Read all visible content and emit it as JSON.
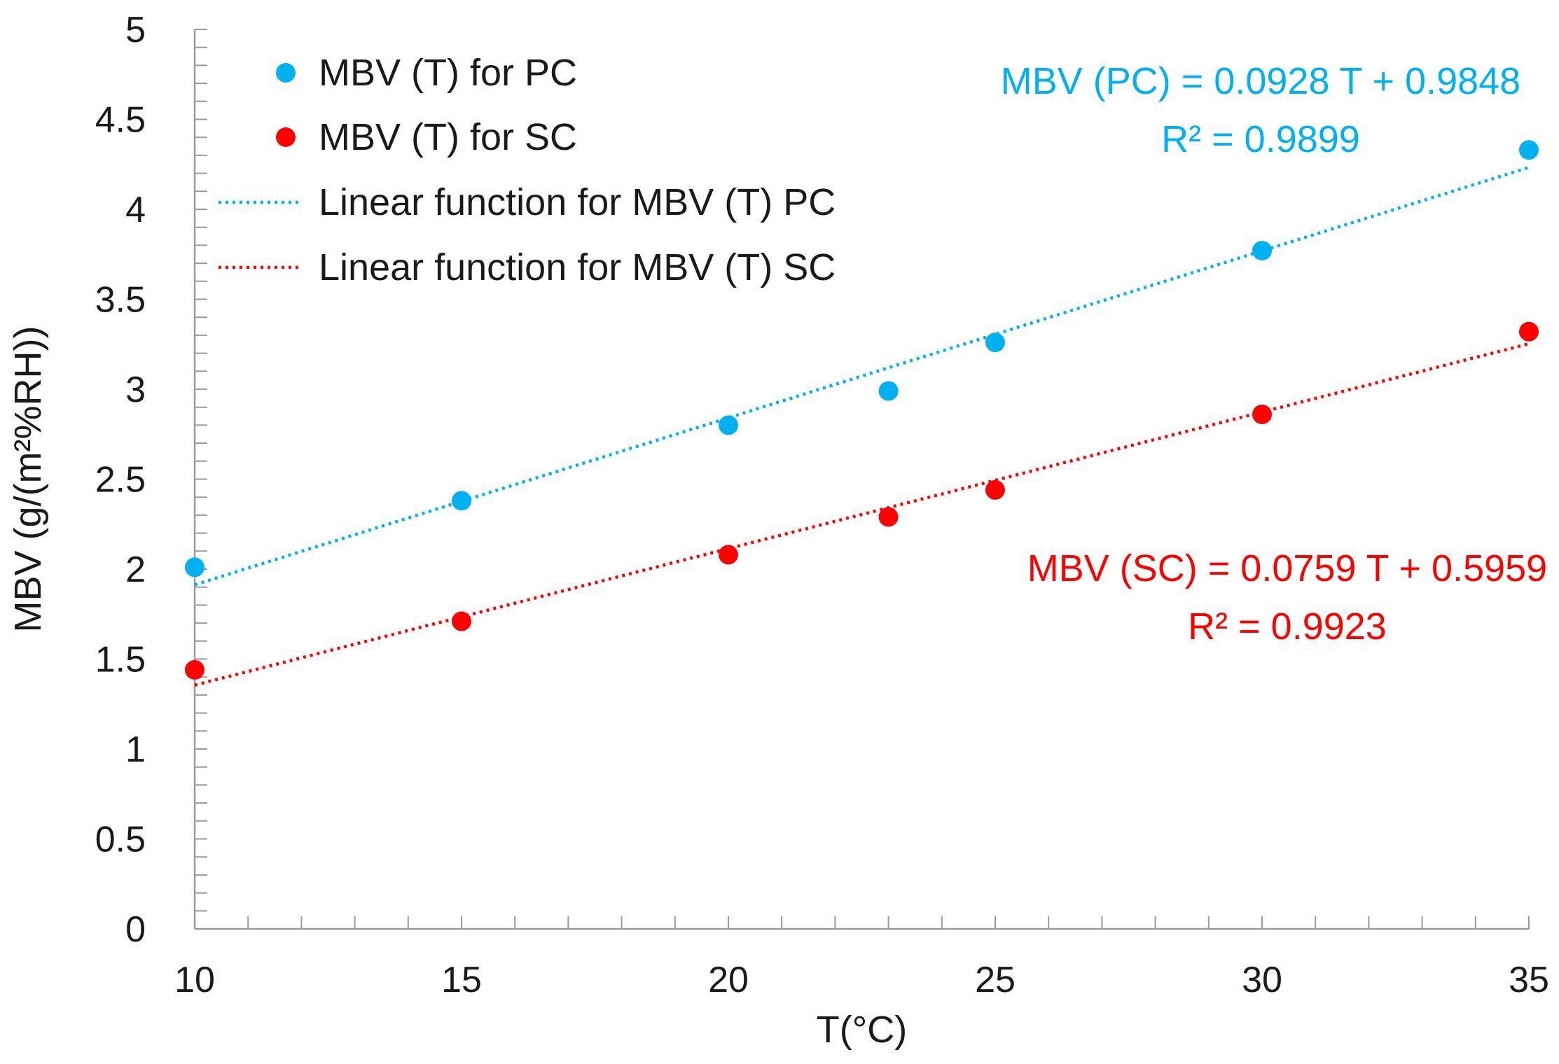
{
  "chart_data": {
    "type": "scatter",
    "title": "",
    "xlabel": "T(°C)",
    "ylabel": "MBV (g/(m²%RH))",
    "xlim": [
      10,
      35
    ],
    "ylim": [
      0,
      5
    ],
    "x_ticks": [
      "10",
      "15",
      "20",
      "25",
      "30",
      "35"
    ],
    "y_ticks": [
      "0",
      "0.5",
      "1",
      "1.5",
      "2",
      "2.5",
      "3",
      "3.5",
      "4",
      "4.5",
      "5"
    ],
    "grid": false,
    "legend_position": "top-left",
    "series": [
      {
        "name": "MBV (T) for PC",
        "color": "#00b0f0",
        "x": [
          10,
          15,
          20,
          23,
          25,
          30,
          35
        ],
        "y": [
          2.01,
          2.38,
          2.8,
          2.99,
          3.26,
          3.77,
          4.33
        ]
      },
      {
        "name": "MBV (T) for SC",
        "color": "#ff0000",
        "x": [
          10,
          15,
          20,
          23,
          25,
          30,
          35
        ],
        "y": [
          1.44,
          1.71,
          2.08,
          2.29,
          2.44,
          2.86,
          3.32
        ]
      }
    ],
    "trendlines": [
      {
        "name": "Linear function for MBV (T) PC",
        "color": "#00b0f0",
        "slope": 0.0928,
        "intercept": 0.9848
      },
      {
        "name": "Linear function for MBV (T) SC",
        "color": "#ff0000",
        "slope": 0.0759,
        "intercept": 0.5959
      }
    ],
    "annotations": [
      {
        "color": "#00b0f0",
        "equation": "MBV (PC) = 0.0928 T + 0.9848",
        "r2": "R² = 0.9899"
      },
      {
        "color": "#ff0000",
        "equation": "MBV (SC) = 0.0759 T + 0.5959",
        "r2": "R² = 0.9923"
      }
    ]
  }
}
